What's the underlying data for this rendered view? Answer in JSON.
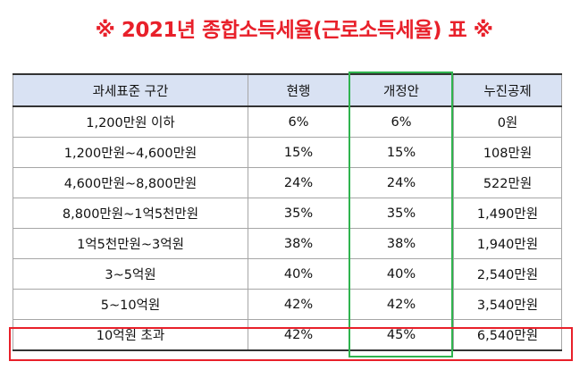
{
  "title": "※ 2021년 종합소득세율(근로소득세율) 표 ※",
  "table": {
    "headers": [
      "과세표준 구간",
      "현행",
      "개정안",
      "누진공제"
    ],
    "rows": [
      [
        "1,200만원 이하",
        "6%",
        "6%",
        "0원"
      ],
      [
        "1,200만원~4,600만원",
        "15%",
        "15%",
        "108만원"
      ],
      [
        "4,600만원~8,800만원",
        "24%",
        "24%",
        "522만원"
      ],
      [
        "8,800만원~1억5천만원",
        "35%",
        "35%",
        "1,490만원"
      ],
      [
        "1억5천만원~3억원",
        "38%",
        "38%",
        "1,940만원"
      ],
      [
        "3~5억원",
        "40%",
        "40%",
        "2,540만원"
      ],
      [
        "5~10억원",
        "42%",
        "42%",
        "3,540만원"
      ],
      [
        "10억원 초과",
        "42%",
        "45%",
        "6,540만원"
      ]
    ]
  },
  "colors": {
    "title": "#e8202a",
    "header_bg": "#d9e2f3",
    "highlight_column": "#2fb34e",
    "highlight_row": "#e8202a"
  }
}
